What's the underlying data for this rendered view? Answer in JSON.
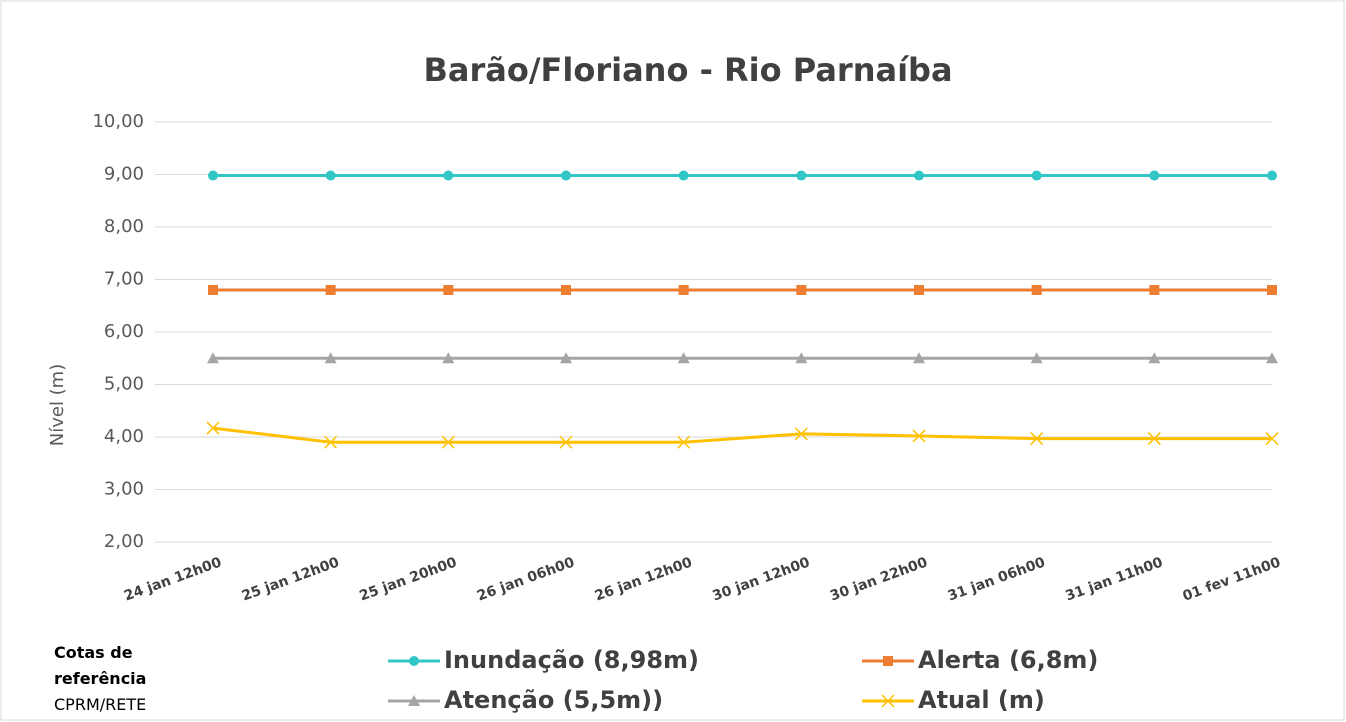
{
  "chart_data": {
    "type": "line",
    "title": "Barão/Floriano - Rio Parnaíba",
    "y_label": "Nível (m)",
    "categories": [
      "24 jan 12h00",
      "25 jan 12h00",
      "25 jan 20h00",
      "26 jan 06h00",
      "26 jan 12h00",
      "30 jan 12h00",
      "30 jan 22h00",
      "31 jan 06h00",
      "31 jan 11h00",
      "01 fev 11h00"
    ],
    "series": [
      {
        "name": "Inundação (8,98m)",
        "color": "#33c6c6",
        "marker": "circle",
        "values": [
          8.98,
          8.98,
          8.98,
          8.98,
          8.98,
          8.98,
          8.98,
          8.98,
          8.98,
          8.98
        ]
      },
      {
        "name": "Alerta (6,8m)",
        "color": "#ed7d31",
        "marker": "square",
        "values": [
          6.8,
          6.8,
          6.8,
          6.8,
          6.8,
          6.8,
          6.8,
          6.8,
          6.8,
          6.8
        ]
      },
      {
        "name": "Atenção (5,5m))",
        "color": "#a5a5a5",
        "marker": "triangle",
        "values": [
          5.5,
          5.5,
          5.5,
          5.5,
          5.5,
          5.5,
          5.5,
          5.5,
          5.5,
          5.5
        ]
      },
      {
        "name": "Atual (m)",
        "color": "#ffc000",
        "marker": "x",
        "values": [
          4.17,
          3.9,
          3.9,
          3.9,
          3.9,
          4.06,
          4.02,
          3.97,
          3.97,
          3.97
        ]
      }
    ],
    "ylim": [
      2,
      10
    ],
    "yticks": [
      {
        "value": 2,
        "label": "2,00"
      },
      {
        "value": 3,
        "label": "3,00"
      },
      {
        "value": 4,
        "label": "4,00"
      },
      {
        "value": 5,
        "label": "5,00"
      },
      {
        "value": 6,
        "label": "6,00"
      },
      {
        "value": 7,
        "label": "7,00"
      },
      {
        "value": 8,
        "label": "8,00"
      },
      {
        "value": 9,
        "label": "9,00"
      },
      {
        "value": 10,
        "label": "10,00"
      }
    ],
    "grid": true,
    "legend": "bottom",
    "notes": [
      "Cotas de referência",
      "CPRM/RETE"
    ]
  }
}
